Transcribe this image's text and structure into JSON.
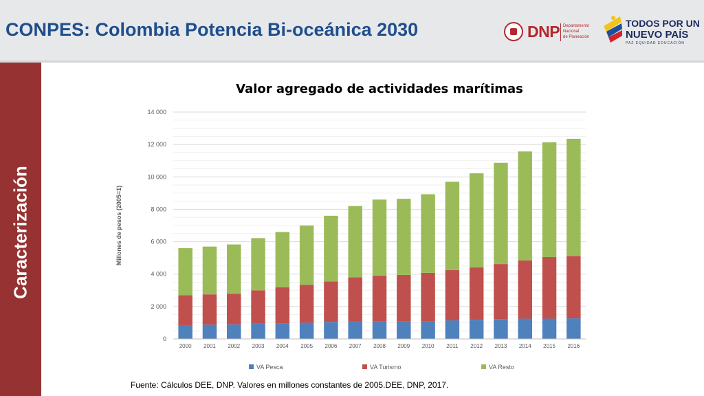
{
  "header": {
    "title": "CONPES: Colombia Potencia Bi-oceánica 2030"
  },
  "sidebar": {
    "label": "Caracterización"
  },
  "logos": {
    "dnp_name": "DNP",
    "dnp_sub_1": "Departamento",
    "dnp_sub_2": "Nacional",
    "dnp_sub_3": "de Planeación",
    "tpnp_line1": "TODOS POR UN",
    "tpnp_line2": "NUEVO PAÍS",
    "tpnp_line3": "PAZ  EQUIDAD  EDUCACIÓN"
  },
  "colors": {
    "title": "#1f4e8c",
    "sidebar": "#963232",
    "series_pesca": "#4f81bd",
    "series_turismo": "#c0504d",
    "series_resto": "#9bbb59"
  },
  "chart_data": {
    "type": "bar",
    "stacked": true,
    "title": "Valor agregado de actividades marítimas",
    "xlabel": "",
    "ylabel": "Millones de pesos  (2005=1)",
    "ylim": [
      0,
      14000
    ],
    "yticks": [
      0,
      2000,
      4000,
      6000,
      8000,
      10000,
      12000,
      14000
    ],
    "ytick_labels": [
      "0",
      "2 000",
      "4 000",
      "6 000",
      "8 000",
      "10 000",
      "12 000",
      "14 000"
    ],
    "grid": true,
    "legend_position": "bottom",
    "categories": [
      "2000",
      "2001",
      "2002",
      "2003",
      "2004",
      "2005",
      "2006",
      "2007",
      "2008",
      "2009",
      "2010",
      "2011",
      "2012",
      "2013",
      "2014",
      "2015",
      "2016"
    ],
    "series": [
      {
        "name": "VA Pesca",
        "values": [
          850,
          880,
          900,
          950,
          960,
          1000,
          1050,
          1080,
          1100,
          1100,
          1100,
          1150,
          1180,
          1220,
          1250,
          1250,
          1270
        ]
      },
      {
        "name": "VA Turismo",
        "values": [
          1850,
          1870,
          1880,
          2050,
          2230,
          2330,
          2500,
          2720,
          2800,
          2850,
          2980,
          3100,
          3240,
          3400,
          3600,
          3800,
          3850
        ]
      },
      {
        "name": "VA Resto",
        "values": [
          2900,
          2950,
          3050,
          3220,
          3410,
          3670,
          4050,
          4400,
          4700,
          4700,
          4850,
          5450,
          5800,
          6250,
          6720,
          7080,
          7230
        ]
      }
    ]
  },
  "footer": {
    "source": "Fuente: Cálculos DEE, DNP. Valores en millones constantes de 2005.DEE, DNP, 2017."
  }
}
